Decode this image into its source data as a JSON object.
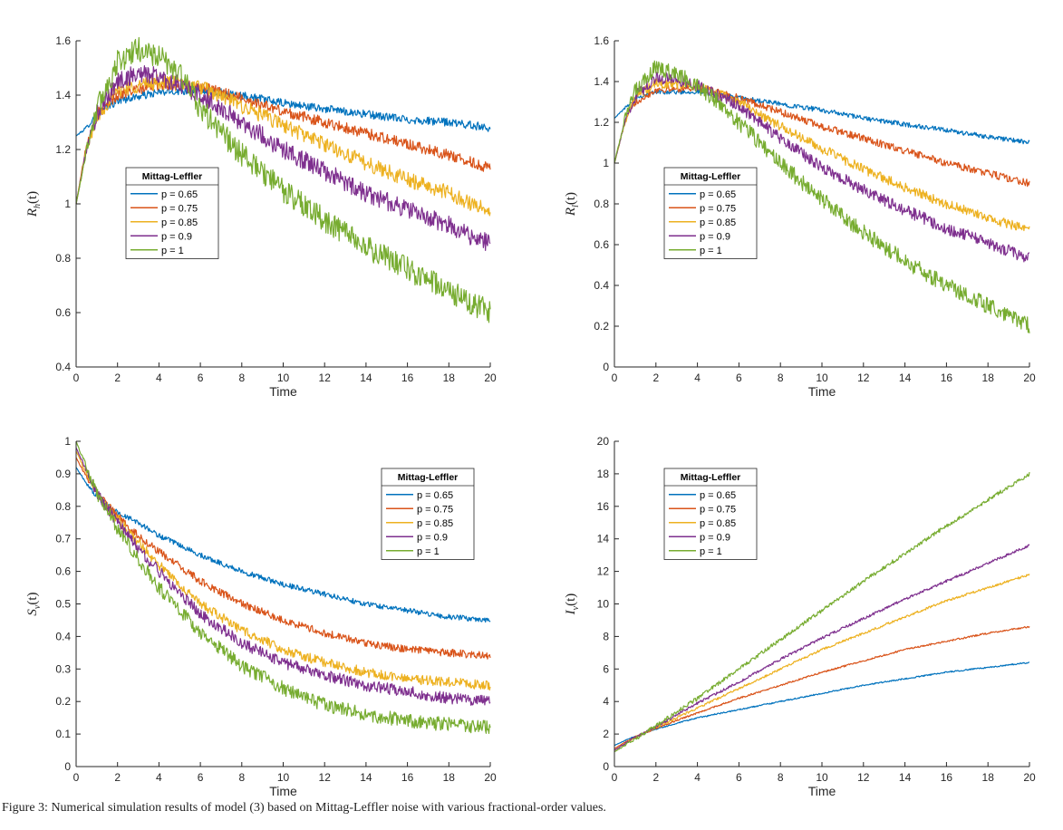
{
  "caption": "Figure 3: Numerical simulation results of model (3) based on Mittag-Leffler noise with various fractional-order values.",
  "chart_data": [
    {
      "type": "line",
      "ylabel_main": "R",
      "ylabel_sub": "h",
      "ylabel_arg": "(t)",
      "xlabel": "Time",
      "xlim": [
        0,
        20
      ],
      "ylim": [
        0.4,
        1.6
      ],
      "xticks": [
        0,
        2,
        4,
        6,
        8,
        10,
        12,
        14,
        16,
        18,
        20
      ],
      "yticks": [
        0.4,
        0.6,
        0.8,
        1,
        1.2,
        1.4,
        1.6
      ],
      "legend_title": "Mittag-Leffler",
      "legend_position": "center-left",
      "noise": [
        0.015,
        0.02,
        0.028,
        0.035,
        0.045
      ],
      "series": [
        {
          "name": "p = 0.65",
          "color": "#0072BD",
          "x": [
            0,
            0.5,
            1,
            2,
            4,
            6,
            8,
            10,
            12,
            14,
            16,
            18,
            20
          ],
          "y": [
            1.25,
            1.28,
            1.33,
            1.38,
            1.41,
            1.42,
            1.4,
            1.37,
            1.35,
            1.33,
            1.31,
            1.3,
            1.28
          ]
        },
        {
          "name": "p = 0.75",
          "color": "#D95319",
          "x": [
            0,
            0.5,
            1,
            2,
            4,
            6,
            8,
            10,
            12,
            14,
            16,
            18,
            20
          ],
          "y": [
            1.0,
            1.22,
            1.33,
            1.4,
            1.44,
            1.43,
            1.39,
            1.34,
            1.3,
            1.26,
            1.22,
            1.18,
            1.13
          ]
        },
        {
          "name": "p = 0.85",
          "color": "#EDB120",
          "x": [
            0,
            0.5,
            1,
            2,
            4,
            6,
            8,
            10,
            12,
            14,
            16,
            18,
            20
          ],
          "y": [
            1.0,
            1.2,
            1.32,
            1.42,
            1.45,
            1.43,
            1.36,
            1.29,
            1.22,
            1.15,
            1.09,
            1.04,
            0.97
          ]
        },
        {
          "name": "p = 0.9",
          "color": "#7E2F8E",
          "x": [
            0,
            0.5,
            1,
            2,
            3,
            4,
            6,
            8,
            10,
            12,
            14,
            16,
            18,
            20
          ],
          "y": [
            1.0,
            1.2,
            1.33,
            1.45,
            1.48,
            1.47,
            1.4,
            1.3,
            1.2,
            1.12,
            1.04,
            0.98,
            0.92,
            0.85
          ]
        },
        {
          "name": "p = 1",
          "color": "#77AC30",
          "x": [
            0,
            0.5,
            1,
            2,
            3,
            4,
            5,
            6,
            8,
            10,
            12,
            14,
            16,
            18,
            20
          ],
          "y": [
            1.0,
            1.2,
            1.35,
            1.52,
            1.57,
            1.54,
            1.48,
            1.35,
            1.18,
            1.05,
            0.94,
            0.84,
            0.76,
            0.68,
            0.6
          ]
        }
      ]
    },
    {
      "type": "line",
      "ylabel_main": "R",
      "ylabel_sub": "l",
      "ylabel_arg": "(t)",
      "xlabel": "Time",
      "xlim": [
        0,
        20
      ],
      "ylim": [
        0,
        1.6
      ],
      "xticks": [
        0,
        2,
        4,
        6,
        8,
        10,
        12,
        14,
        16,
        18,
        20
      ],
      "yticks": [
        0,
        0.2,
        0.4,
        0.6,
        0.8,
        1,
        1.2,
        1.4,
        1.6
      ],
      "legend_title": "Mittag-Leffler",
      "legend_position": "center-left",
      "noise": [
        0.012,
        0.018,
        0.024,
        0.03,
        0.04
      ],
      "series": [
        {
          "name": "p = 0.65",
          "color": "#0072BD",
          "x": [
            0,
            0.5,
            1,
            2,
            4,
            6,
            8,
            10,
            12,
            14,
            16,
            18,
            20
          ],
          "y": [
            1.22,
            1.27,
            1.32,
            1.35,
            1.35,
            1.32,
            1.29,
            1.26,
            1.22,
            1.19,
            1.16,
            1.13,
            1.1
          ]
        },
        {
          "name": "p = 0.75",
          "color": "#D95319",
          "x": [
            0,
            0.5,
            1,
            2,
            4,
            6,
            8,
            10,
            12,
            14,
            16,
            18,
            20
          ],
          "y": [
            1.0,
            1.2,
            1.3,
            1.36,
            1.37,
            1.32,
            1.25,
            1.18,
            1.12,
            1.06,
            1.0,
            0.95,
            0.9
          ]
        },
        {
          "name": "p = 0.85",
          "color": "#EDB120",
          "x": [
            0,
            0.5,
            1,
            2,
            4,
            6,
            8,
            10,
            12,
            14,
            16,
            18,
            20
          ],
          "y": [
            1.0,
            1.2,
            1.32,
            1.39,
            1.38,
            1.3,
            1.18,
            1.07,
            0.97,
            0.88,
            0.8,
            0.73,
            0.67
          ]
        },
        {
          "name": "p = 0.9",
          "color": "#7E2F8E",
          "x": [
            0,
            0.5,
            1,
            2,
            3,
            4,
            6,
            8,
            10,
            12,
            14,
            16,
            18,
            20
          ],
          "y": [
            1.0,
            1.2,
            1.33,
            1.42,
            1.41,
            1.38,
            1.28,
            1.12,
            0.98,
            0.87,
            0.77,
            0.68,
            0.61,
            0.53
          ]
        },
        {
          "name": "p = 1",
          "color": "#77AC30",
          "x": [
            0,
            0.5,
            1,
            2,
            3,
            4,
            5,
            6,
            8,
            10,
            12,
            14,
            16,
            18,
            20
          ],
          "y": [
            1.0,
            1.22,
            1.35,
            1.47,
            1.44,
            1.38,
            1.3,
            1.2,
            1.0,
            0.82,
            0.66,
            0.52,
            0.4,
            0.3,
            0.2
          ]
        }
      ]
    },
    {
      "type": "line",
      "ylabel_main": "S",
      "ylabel_sub": "v",
      "ylabel_arg": "(t)",
      "xlabel": "Time",
      "xlim": [
        0,
        20
      ],
      "ylim": [
        0,
        1
      ],
      "xticks": [
        0,
        2,
        4,
        6,
        8,
        10,
        12,
        14,
        16,
        18,
        20
      ],
      "yticks": [
        0,
        0.1,
        0.2,
        0.3,
        0.4,
        0.5,
        0.6,
        0.7,
        0.8,
        0.9,
        1
      ],
      "legend_title": "Mittag-Leffler",
      "legend_position": "top-right",
      "noise": [
        0.008,
        0.012,
        0.015,
        0.018,
        0.022
      ],
      "series": [
        {
          "name": "p = 0.65",
          "color": "#0072BD",
          "x": [
            0,
            0.5,
            1,
            2,
            3,
            4,
            6,
            8,
            10,
            12,
            14,
            16,
            18,
            20
          ],
          "y": [
            0.92,
            0.87,
            0.83,
            0.78,
            0.75,
            0.71,
            0.65,
            0.6,
            0.56,
            0.53,
            0.5,
            0.48,
            0.46,
            0.45
          ]
        },
        {
          "name": "p = 0.75",
          "color": "#D95319",
          "x": [
            0,
            0.5,
            1,
            2,
            3,
            4,
            6,
            8,
            10,
            12,
            14,
            16,
            18,
            20
          ],
          "y": [
            0.95,
            0.89,
            0.84,
            0.77,
            0.71,
            0.66,
            0.57,
            0.5,
            0.45,
            0.41,
            0.38,
            0.36,
            0.35,
            0.34
          ]
        },
        {
          "name": "p = 0.85",
          "color": "#EDB120",
          "x": [
            0,
            0.5,
            1,
            2,
            3,
            4,
            6,
            8,
            10,
            12,
            14,
            16,
            18,
            20
          ],
          "y": [
            0.97,
            0.9,
            0.84,
            0.76,
            0.69,
            0.62,
            0.5,
            0.42,
            0.36,
            0.32,
            0.29,
            0.27,
            0.26,
            0.25
          ]
        },
        {
          "name": "p = 0.9",
          "color": "#7E2F8E",
          "x": [
            0,
            0.5,
            1,
            2,
            3,
            4,
            6,
            8,
            10,
            12,
            14,
            16,
            18,
            20
          ],
          "y": [
            0.98,
            0.91,
            0.84,
            0.75,
            0.67,
            0.6,
            0.47,
            0.38,
            0.32,
            0.28,
            0.25,
            0.23,
            0.21,
            0.2
          ]
        },
        {
          "name": "p = 1",
          "color": "#77AC30",
          "x": [
            0,
            0.5,
            1,
            2,
            3,
            4,
            6,
            8,
            10,
            12,
            14,
            16,
            18,
            20
          ],
          "y": [
            1.0,
            0.92,
            0.84,
            0.73,
            0.64,
            0.55,
            0.41,
            0.31,
            0.24,
            0.19,
            0.16,
            0.14,
            0.13,
            0.12
          ]
        }
      ]
    },
    {
      "type": "line",
      "ylabel_main": "I",
      "ylabel_sub": "v",
      "ylabel_arg": "(t)",
      "xlabel": "Time",
      "xlim": [
        0,
        20
      ],
      "ylim": [
        0,
        20
      ],
      "xticks": [
        0,
        2,
        4,
        6,
        8,
        10,
        12,
        14,
        16,
        18,
        20
      ],
      "yticks": [
        0,
        2,
        4,
        6,
        8,
        10,
        12,
        14,
        16,
        18,
        20
      ],
      "legend_title": "Mittag-Leffler",
      "legend_position": "top-left",
      "noise": [
        0.04,
        0.05,
        0.07,
        0.08,
        0.12
      ],
      "series": [
        {
          "name": "p = 0.65",
          "color": "#0072BD",
          "x": [
            0,
            0.5,
            1,
            2,
            4,
            6,
            8,
            10,
            12,
            14,
            16,
            18,
            20
          ],
          "y": [
            1.3,
            1.6,
            1.85,
            2.3,
            3.0,
            3.5,
            4.0,
            4.5,
            5.0,
            5.4,
            5.8,
            6.1,
            6.4
          ]
        },
        {
          "name": "p = 0.75",
          "color": "#D95319",
          "x": [
            0,
            0.5,
            1,
            2,
            4,
            6,
            8,
            10,
            12,
            14,
            16,
            18,
            20
          ],
          "y": [
            1.1,
            1.5,
            1.8,
            2.35,
            3.3,
            4.2,
            5.0,
            5.8,
            6.5,
            7.2,
            7.7,
            8.2,
            8.6
          ]
        },
        {
          "name": "p = 0.85",
          "color": "#EDB120",
          "x": [
            0,
            0.5,
            1,
            2,
            4,
            6,
            8,
            10,
            12,
            14,
            16,
            18,
            20
          ],
          "y": [
            1.0,
            1.4,
            1.8,
            2.4,
            3.6,
            4.8,
            6.0,
            7.2,
            8.2,
            9.2,
            10.2,
            11.0,
            11.8
          ]
        },
        {
          "name": "p = 0.9",
          "color": "#7E2F8E",
          "x": [
            0,
            0.5,
            1,
            2,
            4,
            6,
            8,
            10,
            12,
            14,
            16,
            18,
            20
          ],
          "y": [
            1.0,
            1.4,
            1.8,
            2.45,
            3.9,
            5.2,
            6.6,
            7.9,
            9.1,
            10.3,
            11.4,
            12.5,
            13.6
          ]
        },
        {
          "name": "p = 1",
          "color": "#77AC30",
          "x": [
            0,
            0.5,
            1,
            2,
            4,
            6,
            8,
            10,
            12,
            14,
            16,
            18,
            20
          ],
          "y": [
            0.9,
            1.3,
            1.7,
            2.5,
            4.2,
            6.0,
            7.8,
            9.6,
            11.4,
            13.1,
            14.8,
            16.4,
            18.0
          ]
        }
      ]
    }
  ]
}
